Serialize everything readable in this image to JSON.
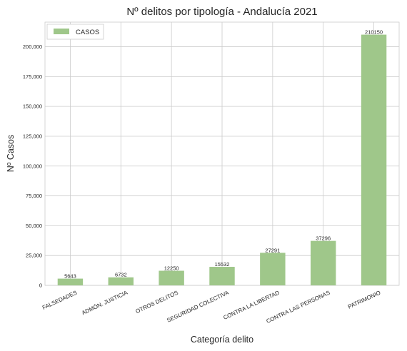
{
  "chart_data": {
    "type": "bar",
    "title": "Nº delitos por tipología - Andalucía 2021",
    "xlabel": "Categoría delito",
    "ylabel": "Nº Casos",
    "categories": [
      "FALSEDADES",
      "ADMÓN. JUSTICIA",
      "OTROS DELITOS",
      "SEGURIDAD COLECTIVA",
      "CONTRA LA LIBERTAD",
      "CONTRA LAS PERSONAS",
      "PATRIMONIO"
    ],
    "series": [
      {
        "name": "CASOS",
        "values": [
          5643,
          6732,
          12250,
          15532,
          27291,
          37296,
          210150
        ]
      }
    ],
    "data_labels": [
      "5643",
      "6732",
      "12250",
      "15532",
      "27291",
      "37296",
      "210150"
    ],
    "yticks": [
      0,
      25000,
      50000,
      75000,
      100000,
      125000,
      150000,
      175000,
      200000
    ],
    "ytick_labels": [
      "0",
      "25,000",
      "50,000",
      "75,000",
      "100,000",
      "125,000",
      "150,000",
      "175,000",
      "200,000"
    ],
    "ylim": [
      0,
      220658
    ],
    "grid": true,
    "legend_position": "top-left",
    "bar_color": "#9fc78a",
    "grid_color": "#cccccc"
  }
}
